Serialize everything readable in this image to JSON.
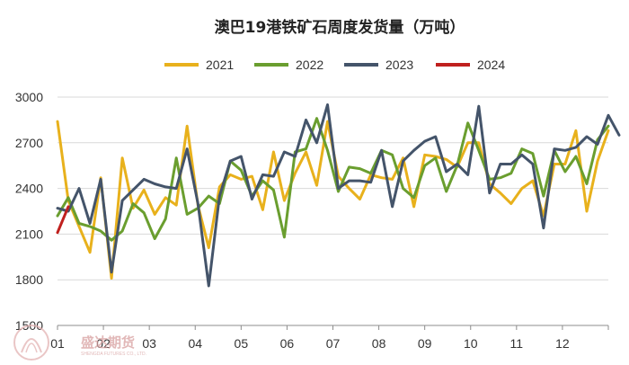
{
  "chart_data": {
    "type": "line",
    "title": "澳巴19港铁矿石周度发货量（万吨）",
    "xlabel": "",
    "ylabel": "",
    "ylim": [
      1500,
      3000
    ],
    "yticks": [
      1500,
      1800,
      2100,
      2400,
      2700,
      3000
    ],
    "x_tick_labels": [
      "01",
      "02",
      "03",
      "04",
      "05",
      "06",
      "07",
      "08",
      "09",
      "10",
      "11",
      "12"
    ],
    "weeks": 52,
    "grid": "horizontal",
    "legend_position": "top",
    "series": [
      {
        "name": "2021",
        "color": "#E8B11C",
        "values": [
          2840,
          2320,
          2150,
          1980,
          2470,
          1810,
          2600,
          2270,
          2390,
          2230,
          2340,
          2290,
          2810,
          2290,
          2010,
          2410,
          2490,
          2460,
          2480,
          2260,
          2640,
          2320,
          2500,
          2640,
          2420,
          2840,
          2480,
          2400,
          2330,
          2490,
          2470,
          2460,
          2600,
          2280,
          2620,
          2610,
          2590,
          2540,
          2700,
          2700,
          2430,
          2370,
          2300,
          2400,
          2450,
          2220,
          2560,
          2560,
          2780,
          2250,
          2580,
          2780
        ]
      },
      {
        "name": "2022",
        "color": "#6A9E2F",
        "values": [
          2220,
          2340,
          2170,
          2150,
          2120,
          2060,
          2120,
          2300,
          2240,
          2070,
          2200,
          2600,
          2230,
          2270,
          2350,
          2300,
          2580,
          2520,
          2350,
          2450,
          2390,
          2080,
          2640,
          2660,
          2860,
          2650,
          2380,
          2540,
          2530,
          2500,
          2650,
          2620,
          2400,
          2340,
          2550,
          2600,
          2380,
          2550,
          2830,
          2650,
          2460,
          2470,
          2500,
          2660,
          2630,
          2350,
          2650,
          2510,
          2610,
          2430,
          2720,
          2810
        ]
      },
      {
        "name": "2023",
        "color": "#44546A",
        "values": [
          2270,
          2250,
          2400,
          2170,
          2460,
          1850,
          2320,
          2390,
          2460,
          2430,
          2410,
          2400,
          2660,
          2300,
          1760,
          2350,
          2580,
          2610,
          2330,
          2490,
          2480,
          2640,
          2610,
          2850,
          2700,
          2950,
          2400,
          2450,
          2450,
          2440,
          2650,
          2280,
          2580,
          2650,
          2710,
          2740,
          2510,
          2560,
          2490,
          2940,
          2370,
          2560,
          2560,
          2620,
          2560,
          2140,
          2660,
          2650,
          2670,
          2740,
          2690,
          2880,
          2750
        ]
      },
      {
        "name": "2024",
        "color": "#C0201E",
        "values": [
          2110,
          2280
        ]
      }
    ]
  },
  "watermark": {
    "name_cn": "盛达期货",
    "name_en": "SHENGDA FUTURES CO., LTD."
  }
}
